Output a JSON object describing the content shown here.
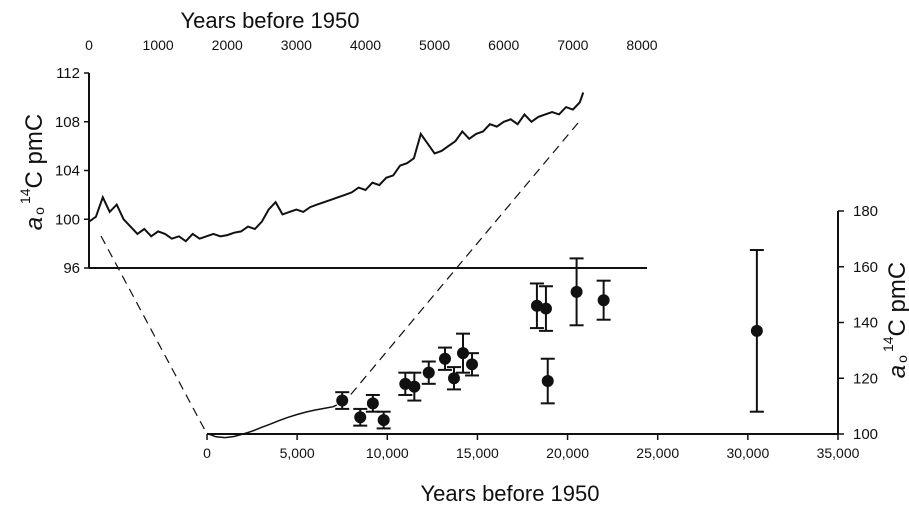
{
  "chart_data": [
    {
      "type": "line",
      "title": "",
      "xlabel": "Years before 1950",
      "ylabel_prefix": "a",
      "ylabel_circle": "o",
      "ylabel_super": "14",
      "ylabel_suffix": "C pmC",
      "xlim": [
        0,
        8000
      ],
      "ylim": [
        96,
        112
      ],
      "xticks": [
        0,
        1000,
        2000,
        3000,
        4000,
        5000,
        6000,
        7000,
        8000
      ],
      "xtick_labels": [
        "0",
        "1000",
        "2000",
        "3000",
        "4000",
        "5000",
        "6000",
        "7000",
        "8000"
      ],
      "yticks": [
        96,
        100,
        104,
        108,
        112
      ],
      "ytick_labels": [
        "96",
        "100",
        "104",
        "108",
        "112"
      ],
      "grid": false,
      "x_axis_position": "top",
      "series": [
        {
          "x": [
            0,
            100,
            200,
            300,
            400,
            500,
            600,
            700,
            800,
            900,
            1000,
            1100,
            1200,
            1300,
            1400,
            1500,
            1600,
            1700,
            1800,
            1900,
            2000,
            2100,
            2200,
            2300,
            2400,
            2500,
            2600,
            2700,
            2800,
            2900,
            3000,
            3100,
            3200,
            3300,
            3400,
            3500,
            3600,
            3700,
            3800,
            3900,
            4000,
            4100,
            4200,
            4300,
            4400,
            4500,
            4600,
            4700,
            4800,
            4900,
            5000,
            5100,
            5200,
            5300,
            5400,
            5500,
            5600,
            5700,
            5800,
            5900,
            6000,
            6100,
            6200,
            6300,
            6400,
            6500,
            6600,
            6700,
            6800,
            6900,
            7000,
            7100,
            7150
          ],
          "values": [
            99.8,
            100.2,
            101.8,
            100.6,
            101.2,
            100.0,
            99.4,
            98.8,
            99.2,
            98.6,
            99.0,
            98.8,
            98.4,
            98.6,
            98.2,
            98.8,
            98.4,
            98.6,
            98.8,
            98.6,
            98.7,
            98.9,
            99.0,
            99.4,
            99.2,
            99.8,
            100.8,
            101.4,
            100.4,
            100.6,
            100.8,
            100.6,
            101.0,
            101.2,
            101.4,
            101.6,
            101.8,
            102.0,
            102.2,
            102.6,
            102.4,
            103.0,
            102.8,
            103.4,
            103.6,
            104.4,
            104.6,
            105.0,
            107.0,
            106.2,
            105.4,
            105.6,
            106.0,
            106.4,
            107.2,
            106.6,
            107.0,
            107.2,
            107.8,
            107.6,
            108.0,
            108.2,
            107.8,
            108.6,
            108.0,
            108.4,
            108.6,
            108.8,
            108.6,
            109.2,
            109.0,
            109.6,
            110.4
          ]
        }
      ]
    },
    {
      "type": "scatter",
      "title": "",
      "xlabel": "Years before 1950",
      "ylabel_prefix": "a",
      "ylabel_circle": "o",
      "ylabel_super": "14",
      "ylabel_suffix": "C pmC",
      "xlim": [
        0,
        35000
      ],
      "ylim": [
        100,
        180
      ],
      "xticks": [
        0,
        5000,
        10000,
        15000,
        20000,
        25000,
        30000,
        35000
      ],
      "xtick_labels": [
        "0",
        "5,000",
        "10,000",
        "15,000",
        "20,000",
        "25,000",
        "30,000",
        "35,000"
      ],
      "yticks": [
        100,
        120,
        140,
        160,
        180
      ],
      "ytick_labels": [
        "100",
        "120",
        "140",
        "160",
        "180"
      ],
      "grid": false,
      "y_axis_position": "right",
      "curve": {
        "x": [
          0,
          500,
          1000,
          1500,
          2000,
          2500,
          3000,
          3500,
          4000,
          4500,
          5000,
          5500,
          6000,
          6500,
          7000,
          7200
        ],
        "values": [
          100.2,
          99.0,
          98.7,
          99.1,
          100.0,
          101.0,
          102.3,
          103.5,
          104.8,
          106.0,
          107.0,
          107.9,
          108.6,
          109.2,
          109.8,
          110.4
        ]
      },
      "points": [
        {
          "x": 7500,
          "y": 112,
          "err": 3
        },
        {
          "x": 8500,
          "y": 106,
          "err": 3
        },
        {
          "x": 9200,
          "y": 111,
          "err": 3
        },
        {
          "x": 9800,
          "y": 105,
          "err": 3
        },
        {
          "x": 11000,
          "y": 118,
          "err": 4
        },
        {
          "x": 11500,
          "y": 117,
          "err": 5
        },
        {
          "x": 12300,
          "y": 122,
          "err": 4
        },
        {
          "x": 13200,
          "y": 127,
          "err": 4
        },
        {
          "x": 13700,
          "y": 120,
          "err": 4
        },
        {
          "x": 14200,
          "y": 129,
          "err": 7
        },
        {
          "x": 14700,
          "y": 125,
          "err": 4
        },
        {
          "x": 18300,
          "y": 146,
          "err": 8
        },
        {
          "x": 18800,
          "y": 145,
          "err": 8
        },
        {
          "x": 18900,
          "y": 119,
          "err": 8
        },
        {
          "x": 20500,
          "y": 151,
          "err": 12
        },
        {
          "x": 22000,
          "y": 148,
          "err": 7
        },
        {
          "x": 30500,
          "y": 137,
          "err": 29
        }
      ]
    }
  ]
}
